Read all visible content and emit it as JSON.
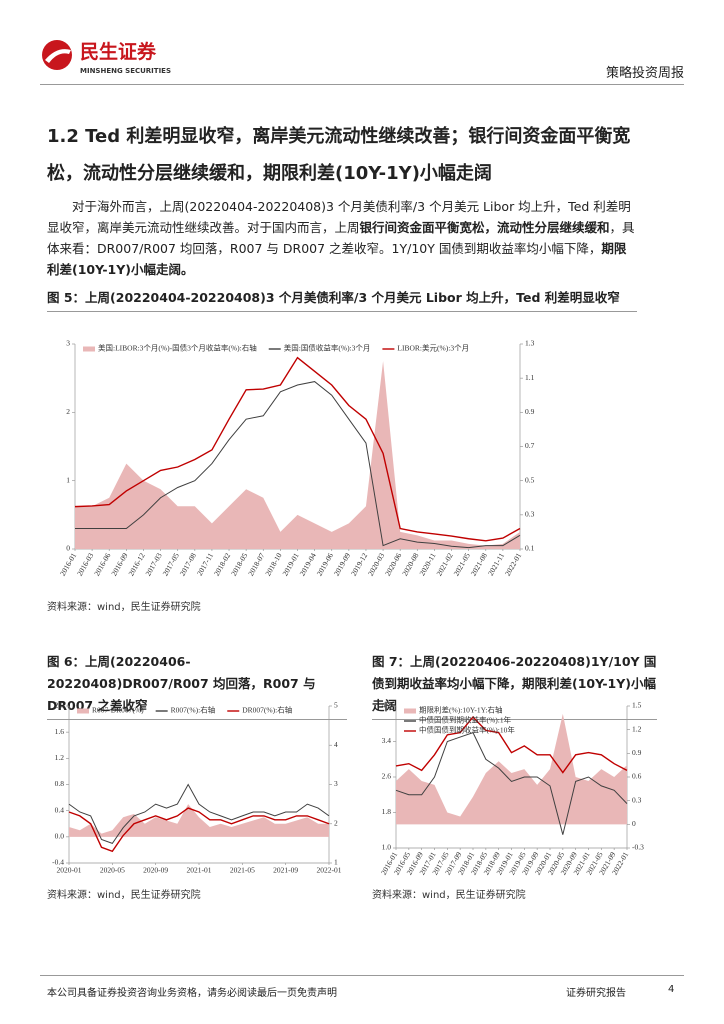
{
  "header": {
    "logo_cn": "民生证券",
    "logo_en": "MINSHENG SECURITIES",
    "report_type": "策略投资周报"
  },
  "section": {
    "heading": "1.2 Ted 利差明显收窄，离岸美元流动性继续改善；银行间资金面平衡宽松，流动性分层继续缓和，期限利差(10Y-1Y)小幅走阔",
    "paragraph": [
      {
        "text": "对于海外而言，上周(20220404-20220408)3 个月美债利率/3 个月美元 Libor 均上升，Ted 利差明显收窄，离岸美元流动性继续改善。对于国内而言，上周",
        "bold": false
      },
      {
        "text": "银行间资金面平衡宽松，流动性分层继续缓和",
        "bold": true
      },
      {
        "text": "，具体来看：DR007/R007 均回落，R007 与 DR007 之差收窄。1Y/10Y 国债到期收益率均小幅下降，",
        "bold": false
      },
      {
        "text": "期限利差(10Y-1Y)小幅走阔。",
        "bold": true
      }
    ]
  },
  "figures": [
    {
      "caption": "图 5：上周(20220404-20220408)3 个月美债利率/3 个月美元 Libor 均上升，Ted 利差明显收窄",
      "source": "资料来源：wind，民生证券研究院",
      "chart_data": {
        "type": "line",
        "categories": [
          "2016-01",
          "2016-03",
          "2016-06",
          "2016-09",
          "2016-12",
          "2017-03",
          "2017-05",
          "2017-08",
          "2017-11",
          "2018-02",
          "2018-05",
          "2018-07",
          "2018-10",
          "2019-01",
          "2019-04",
          "2019-06",
          "2019-09",
          "2019-12",
          "2020-03",
          "2020-06",
          "2020-08",
          "2020-11",
          "2021-02",
          "2021-05",
          "2021-08",
          "2021-11",
          "2022-01"
        ],
        "series": [
          {
            "name": "美国:LIBOR:3个月(%)-国债3个月收益率(%):右轴",
            "type": "area",
            "axis": "y2",
            "color": "#e9b7b7",
            "values": [
              0.35,
              0.35,
              0.4,
              0.6,
              0.5,
              0.45,
              0.35,
              0.35,
              0.25,
              0.35,
              0.45,
              0.4,
              0.2,
              0.3,
              0.25,
              0.2,
              0.25,
              0.35,
              1.2,
              0.2,
              0.18,
              0.15,
              0.15,
              0.13,
              0.12,
              0.13,
              0.2
            ]
          },
          {
            "name": "美国:国债收益率(%):3个月",
            "type": "line",
            "color": "#404040",
            "values": [
              0.3,
              0.3,
              0.3,
              0.3,
              0.5,
              0.75,
              0.9,
              1.0,
              1.25,
              1.6,
              1.9,
              1.95,
              2.3,
              2.4,
              2.45,
              2.25,
              1.9,
              1.55,
              0.05,
              0.15,
              0.1,
              0.08,
              0.04,
              0.02,
              0.05,
              0.05,
              0.2
            ]
          },
          {
            "name": "LIBOR:美元(%):3个月",
            "type": "line",
            "color": "#c00000",
            "values": [
              0.62,
              0.63,
              0.65,
              0.85,
              1.0,
              1.15,
              1.2,
              1.31,
              1.45,
              1.9,
              2.33,
              2.34,
              2.4,
              2.8,
              2.6,
              2.4,
              2.1,
              1.9,
              1.4,
              0.3,
              0.25,
              0.22,
              0.19,
              0.15,
              0.12,
              0.16,
              0.3
            ]
          }
        ],
        "ylim": [
          0,
          3
        ],
        "yticks": [
          0,
          1,
          2,
          3
        ],
        "y2lim": [
          0.1,
          1.3
        ],
        "y2ticks": [
          0.1,
          0.3,
          0.5,
          0.7,
          0.9,
          1.1,
          1.3
        ]
      }
    },
    {
      "caption": "图 6：上周(20220406-20220408)DR007/R007 均回落，R007 与 DR007 之差收窄",
      "source": "资料来源：wind，民生证券研究院",
      "chart_data": {
        "type": "line",
        "categories": [
          "2020-01",
          null,
          null,
          null,
          "2020-05",
          null,
          null,
          null,
          "2020-09",
          null,
          null,
          null,
          "2021-01",
          null,
          null,
          null,
          "2021-05",
          null,
          null,
          null,
          "2021-09",
          null,
          null,
          null,
          "2022-01"
        ],
        "series": [
          {
            "name": "R007-DR007(%)",
            "type": "area",
            "color": "#e9b7b7",
            "values": [
              0.15,
              0.1,
              0.2,
              0.05,
              0.1,
              0.3,
              0.35,
              0.2,
              0.3,
              0.25,
              0.2,
              0.5,
              0.3,
              0.15,
              0.2,
              0.15,
              0.2,
              0.25,
              0.3,
              0.2,
              0.2,
              0.25,
              0.3,
              0.2,
              0.2
            ]
          },
          {
            "name": "R007(%):右轴",
            "type": "line",
            "axis": "y2",
            "color": "#404040",
            "values": [
              2.5,
              2.3,
              2.2,
              1.6,
              1.5,
              1.9,
              2.2,
              2.3,
              2.5,
              2.4,
              2.5,
              3.0,
              2.5,
              2.3,
              2.2,
              2.1,
              2.2,
              2.3,
              2.3,
              2.2,
              2.3,
              2.3,
              2.5,
              2.4,
              2.2
            ]
          },
          {
            "name": "DR007(%):右轴",
            "type": "line",
            "axis": "y2",
            "color": "#c00000",
            "values": [
              2.3,
              2.2,
              2.0,
              1.4,
              1.3,
              1.7,
              2.0,
              2.1,
              2.2,
              2.1,
              2.2,
              2.4,
              2.3,
              2.1,
              2.1,
              2.0,
              2.1,
              2.2,
              2.2,
              2.1,
              2.1,
              2.2,
              2.2,
              2.1,
              2.0
            ]
          }
        ],
        "ylim": [
          -0.4,
          2.0
        ],
        "yticks": [
          -0.4,
          {
            "value": 0,
            "label": "0.0"
          },
          0.4,
          0.8,
          1.2,
          1.6,
          {
            "value": 2,
            "label": "2.0"
          }
        ],
        "y2lim": [
          1,
          5
        ],
        "y2ticks": [
          1,
          2,
          3,
          4,
          5
        ]
      }
    },
    {
      "caption": "图 7：上周(20220406-20220408)1Y/10Y 国债到期收益率均小幅下降，期限利差(10Y-1Y)小幅走阔",
      "source": "资料来源：wind，民生证券研究院",
      "chart_data": {
        "type": "line",
        "categories": [
          "2016-01",
          "2016-05",
          "2016-09",
          "2017-01",
          "2017-05",
          "2017-09",
          "2018-01",
          "2018-05",
          "2018-09",
          "2019-01",
          "2019-05",
          "2019-09",
          "2020-01",
          "2020-05",
          "2020-09",
          "2021-01",
          "2021-05",
          "2021-09",
          "2022-01"
        ],
        "series": [
          {
            "name": "期限利差(%):10Y-1Y:右轴",
            "type": "area",
            "axis": "y2",
            "color": "#e9b7b7",
            "values": [
              0.55,
              0.7,
              0.55,
              0.5,
              0.15,
              0.1,
              0.35,
              0.65,
              0.8,
              0.65,
              0.7,
              0.5,
              0.7,
              1.4,
              0.6,
              0.55,
              0.7,
              0.6,
              0.75
            ]
          },
          {
            "name": "中债国债到期收益率(%):1年",
            "type": "line",
            "color": "#404040",
            "values": [
              2.3,
              2.2,
              2.2,
              2.6,
              3.4,
              3.5,
              3.6,
              3.0,
              2.8,
              2.5,
              2.6,
              2.6,
              2.4,
              1.3,
              2.5,
              2.6,
              2.4,
              2.3,
              2.0
            ]
          },
          {
            "name": "中债国债到期收益率(%):10年",
            "type": "line",
            "color": "#c00000",
            "values": [
              2.85,
              2.9,
              2.75,
              3.1,
              3.55,
              3.6,
              3.95,
              3.65,
              3.6,
              3.15,
              3.3,
              3.1,
              3.1,
              2.7,
              3.1,
              3.15,
              3.1,
              2.9,
              2.75
            ]
          }
        ],
        "ylim": [
          1.0,
          4.2
        ],
        "yticks": [
          {
            "value": 1,
            "label": "1.0"
          },
          1.8,
          2.6,
          3.4,
          4.2
        ],
        "y2lim": [
          -0.3,
          1.5
        ],
        "y2ticks": [
          -0.3,
          0,
          0.3,
          0.6,
          0.9,
          1.2,
          1.5
        ]
      }
    }
  ],
  "footer": {
    "disclaimer": "本公司具备证券投资咨询业务资格，请务必阅读最后一页免责声明",
    "label": "证券研究报告",
    "page": "4"
  }
}
